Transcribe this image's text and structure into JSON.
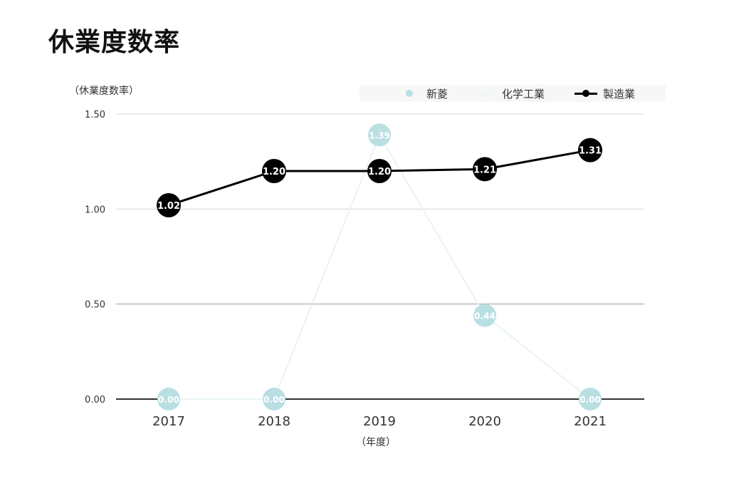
{
  "page": {
    "title": "休業度数率"
  },
  "chart_data": {
    "type": "line",
    "title": "",
    "ylabel": "（休業度数率）",
    "xlabel": "（年度）",
    "categories": [
      "2017",
      "2018",
      "2019",
      "2020",
      "2021"
    ],
    "ylim": [
      0,
      1.5
    ],
    "yticks": [
      "0.00",
      "0.50",
      "1.00",
      "1.50"
    ],
    "grid": true,
    "legend_position": "top-right",
    "series": [
      {
        "name": "新菱",
        "values": [
          0.0,
          0.0,
          1.39,
          0.44,
          0.0
        ],
        "labels": [
          "0.00",
          "0.00",
          "1.39",
          "0.44",
          "0.00"
        ],
        "color": "#b9dfe3",
        "line_color": "#e8f4f4",
        "label_color": "#ffffff"
      },
      {
        "name": "化学工業",
        "values": [
          null,
          null,
          null,
          null,
          null
        ],
        "labels": [],
        "color": "#f4f9f8",
        "line_color": "#f4f9f8",
        "label_color": "#ffffff"
      },
      {
        "name": "製造業",
        "values": [
          1.02,
          1.2,
          1.2,
          1.21,
          1.31
        ],
        "labels": [
          "1.02",
          "1.20",
          "1.20",
          "1.21",
          "1.31"
        ],
        "color": "#000000",
        "line_color": "#000000",
        "label_color": "#ffffff"
      }
    ]
  }
}
